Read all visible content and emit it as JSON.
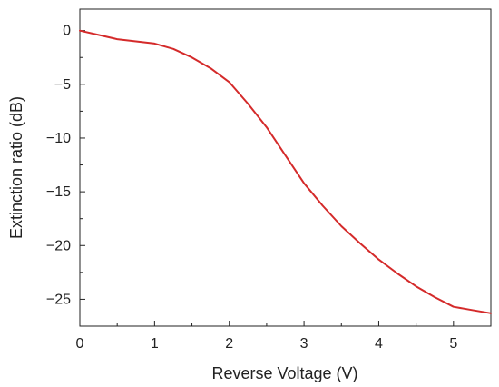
{
  "chart_data": {
    "type": "line",
    "title": "",
    "xlabel": "Reverse Voltage (V)",
    "ylabel": "Extinction ratio (dB)",
    "xlim": [
      0,
      5.5
    ],
    "ylim": [
      -27.5,
      2
    ],
    "x_ticks": [
      0,
      1,
      2,
      3,
      4,
      5
    ],
    "y_ticks": [
      0,
      -5,
      -10,
      -15,
      -20,
      -25
    ],
    "grid": false,
    "legend": "none",
    "series": [
      {
        "color": "#d42a2a",
        "x": [
          0,
          0.25,
          0.5,
          0.75,
          1.0,
          1.25,
          1.5,
          1.75,
          2.0,
          2.25,
          2.5,
          2.75,
          3.0,
          3.25,
          3.5,
          3.75,
          4.0,
          4.25,
          4.5,
          4.75,
          5.0,
          5.25,
          5.5
        ],
        "y": [
          0,
          -0.4,
          -0.8,
          -1.0,
          -1.2,
          -1.7,
          -2.5,
          -3.5,
          -4.8,
          -6.8,
          -9.0,
          -11.6,
          -14.2,
          -16.3,
          -18.2,
          -19.8,
          -21.3,
          -22.6,
          -23.8,
          -24.8,
          -25.7,
          -26.0,
          -26.3
        ]
      }
    ]
  }
}
